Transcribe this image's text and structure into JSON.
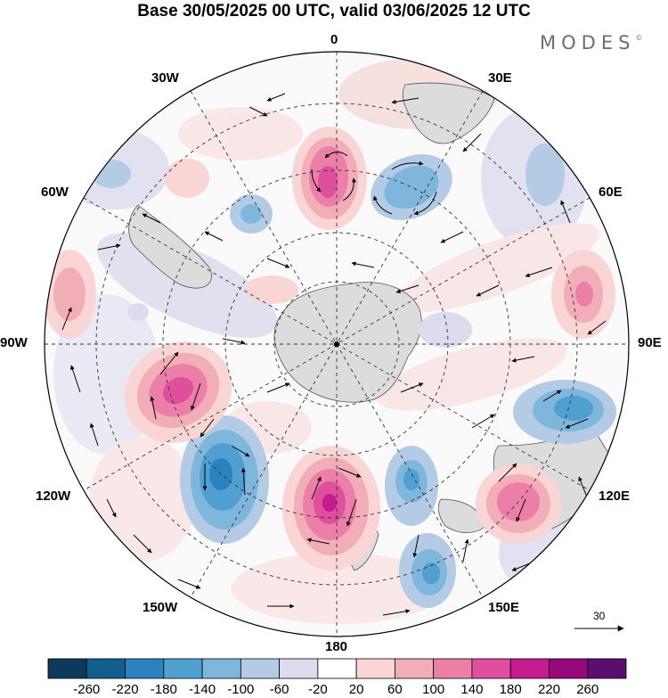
{
  "title": "Base 30/05/2025 00 UTC, valid 03/06/2025 12 UTC",
  "brand": "MODES",
  "brand_mark": "©",
  "longitude_labels": {
    "top": "0",
    "upper_left": "30W",
    "upper_right": "30E",
    "mid_left": "60W",
    "mid_right": "60E",
    "left": "90W",
    "right": "90E",
    "lower_left": "120W",
    "lower_right": "120E",
    "bottom_left": "150W",
    "bottom_right": "150E",
    "bottom": "180"
  },
  "reference_vector": "30",
  "colorbar": {
    "colors": [
      "#0d3a5c",
      "#125e8f",
      "#2a83bf",
      "#4f9fd0",
      "#7fb7dc",
      "#b3cbe5",
      "#dcdcee",
      "#ffffff",
      "#f9d5d5",
      "#f2aeb8",
      "#eb7fa8",
      "#de4f9e",
      "#c41b8f",
      "#97087c",
      "#5c0e6e"
    ],
    "ticks": [
      "-260",
      "-220",
      "-180",
      "-140",
      "-100",
      "-60",
      "-20",
      "20",
      "60",
      "100",
      "140",
      "180",
      "220",
      "260"
    ]
  },
  "map_layers": {
    "color_anomalies": "#e46fa9",
    "land_color": "#dcdcdc",
    "grid_style": "dashed"
  }
}
